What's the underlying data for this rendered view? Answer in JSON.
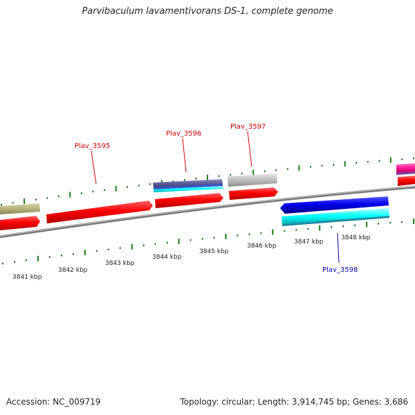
{
  "title": "Parvibaculum lavamentivorans DS-1, complete genome",
  "accession": "Accession: NC_009719",
  "topology": "Topology: circular; Length: 3,914,745 bp; Genes: 3,686",
  "scale": {
    "tick_labels": [
      "3841 kbp",
      "3842 kbp",
      "3843 kbp",
      "3844 kbp",
      "3845 kbp",
      "3846 kbp",
      "3847 kbp",
      "3848 kbp"
    ]
  },
  "genes": [
    {
      "label": "Plav_3595",
      "color": "#cc0000"
    },
    {
      "label": "Plav_3596",
      "color": "#cc0000"
    },
    {
      "label": "Plav_3597",
      "color": "#cc0000"
    },
    {
      "label": "Plav_3598",
      "color": "#0000aa"
    }
  ],
  "colors": {
    "forward_cds": "#ff0000",
    "reverse_cds": "#0000ee",
    "reverse_feature": "#00ffff",
    "olive_feature": "#b5b27a",
    "gray_feature": "#bbbbbb",
    "magenta_feature": "#ff1493",
    "tick": "#1a7a1a",
    "backbone": "#888888"
  }
}
